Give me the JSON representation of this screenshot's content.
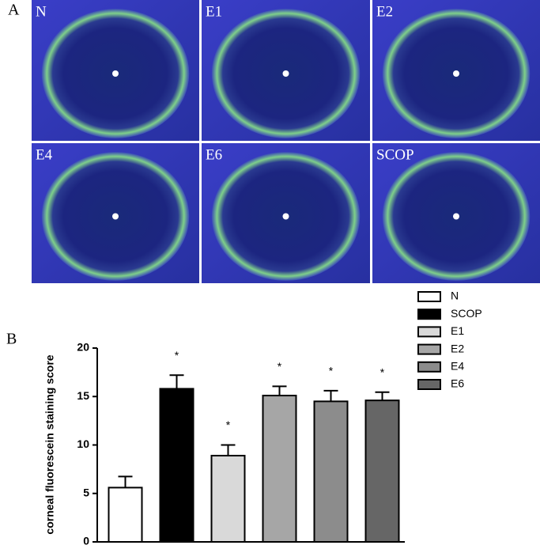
{
  "panel_a": {
    "label": "A",
    "photos": [
      "N",
      "E1",
      "E2",
      "E4",
      "E6",
      "SCOP"
    ]
  },
  "panel_b": {
    "label": "B"
  },
  "chart_data": {
    "type": "bar",
    "ylabel": "corneal fluorescein staining score",
    "categories": [
      "N",
      "SCOP",
      "E1",
      "E2",
      "E4",
      "E6"
    ],
    "values": [
      5.6,
      15.8,
      8.9,
      15.1,
      14.5,
      14.6
    ],
    "errors": [
      1.15,
      1.4,
      1.1,
      0.95,
      1.1,
      0.85
    ],
    "value_annotations": [
      null,
      "*",
      "*",
      "*",
      "*",
      "*"
    ],
    "colors": [
      "#ffffff",
      "#000000",
      "#d9d9d9",
      "#a6a6a6",
      "#8c8c8c",
      "#666666"
    ],
    "ylim": [
      0,
      20
    ],
    "yticks": [
      0,
      5,
      10,
      15,
      20
    ],
    "legend": true
  }
}
